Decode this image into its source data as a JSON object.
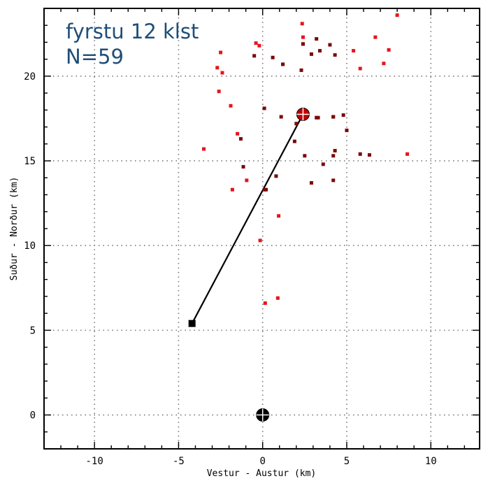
{
  "chart_data": {
    "type": "scatter",
    "title": "",
    "annotation_lines": [
      "fyrstu 12 klst",
      "N=59"
    ],
    "xlabel": "Vestur - Austur (km)",
    "ylabel": "Suður - Norður (km)",
    "xlim": [
      -13.0,
      12.9
    ],
    "ylim": [
      -2.0,
      24.0
    ],
    "xticks": [
      -10,
      -5,
      0,
      5,
      10
    ],
    "yticks": [
      0,
      5,
      10,
      15,
      20
    ],
    "xtick_labels": [
      "-10",
      "-5",
      "0",
      "5",
      "10"
    ],
    "ytick_labels": [
      "0",
      "5",
      "10",
      "15",
      "20"
    ],
    "grid": true,
    "colors": {
      "earlier": "#e8141c",
      "later": "#7a0a0a",
      "line": "#000000",
      "annotation": "#1f4e79"
    },
    "series": [
      {
        "role": "earlier",
        "points": [
          [
            8.0,
            23.6
          ],
          [
            2.35,
            23.1
          ],
          [
            2.4,
            22.3
          ],
          [
            6.7,
            22.3
          ],
          [
            -0.4,
            21.95
          ],
          [
            -0.2,
            21.8
          ],
          [
            -2.5,
            21.4
          ],
          [
            5.4,
            21.5
          ],
          [
            7.5,
            21.55
          ],
          [
            -2.7,
            20.5
          ],
          [
            -2.4,
            20.2
          ],
          [
            5.8,
            20.45
          ],
          [
            7.2,
            20.75
          ],
          [
            -2.6,
            19.1
          ],
          [
            -1.9,
            18.25
          ],
          [
            -1.5,
            16.6
          ],
          [
            -3.5,
            15.7
          ],
          [
            8.6,
            15.4
          ],
          [
            -0.95,
            13.85
          ],
          [
            -1.8,
            13.3
          ],
          [
            0.95,
            11.75
          ],
          [
            -0.15,
            10.3
          ],
          [
            0.9,
            6.9
          ],
          [
            0.15,
            6.6
          ]
        ]
      },
      {
        "role": "later",
        "points": [
          [
            2.4,
            21.9
          ],
          [
            3.2,
            22.2
          ],
          [
            4.0,
            21.85
          ],
          [
            -0.5,
            21.2
          ],
          [
            0.6,
            21.1
          ],
          [
            2.9,
            21.3
          ],
          [
            3.4,
            21.5
          ],
          [
            4.3,
            21.25
          ],
          [
            1.2,
            20.7
          ],
          [
            2.3,
            20.35
          ],
          [
            0.1,
            18.1
          ],
          [
            1.1,
            17.6
          ],
          [
            3.3,
            17.55
          ],
          [
            4.2,
            17.6
          ],
          [
            4.8,
            17.7
          ],
          [
            2.0,
            17.2
          ],
          [
            5.0,
            16.8
          ],
          [
            1.9,
            16.15
          ],
          [
            -1.3,
            16.3
          ],
          [
            4.3,
            15.6
          ],
          [
            2.5,
            15.3
          ],
          [
            4.2,
            15.3
          ],
          [
            5.8,
            15.4
          ],
          [
            6.35,
            15.35
          ],
          [
            -1.15,
            14.65
          ],
          [
            3.6,
            14.8
          ],
          [
            0.8,
            14.1
          ],
          [
            0.2,
            13.3
          ],
          [
            4.2,
            13.85
          ],
          [
            2.9,
            13.7
          ],
          [
            3.2,
            17.55
          ],
          [
            1.2,
            20.7
          ],
          [
            4.2,
            17.6
          ],
          [
            0.1,
            13.3
          ],
          [
            2.4,
            21.9
          ]
        ]
      }
    ],
    "markers": {
      "origin": {
        "x": 0.0,
        "y": 0.0,
        "symbol": "circle-cross",
        "color": "#000000"
      },
      "square": {
        "x": -4.2,
        "y": 5.4,
        "symbol": "square",
        "color": "#000000"
      },
      "centroid": {
        "x": 2.4,
        "y": 17.75,
        "symbol": "circle-cross",
        "color": "#c00000"
      }
    },
    "line": {
      "from": [
        -4.2,
        5.4
      ],
      "to": [
        2.4,
        17.75
      ]
    }
  }
}
